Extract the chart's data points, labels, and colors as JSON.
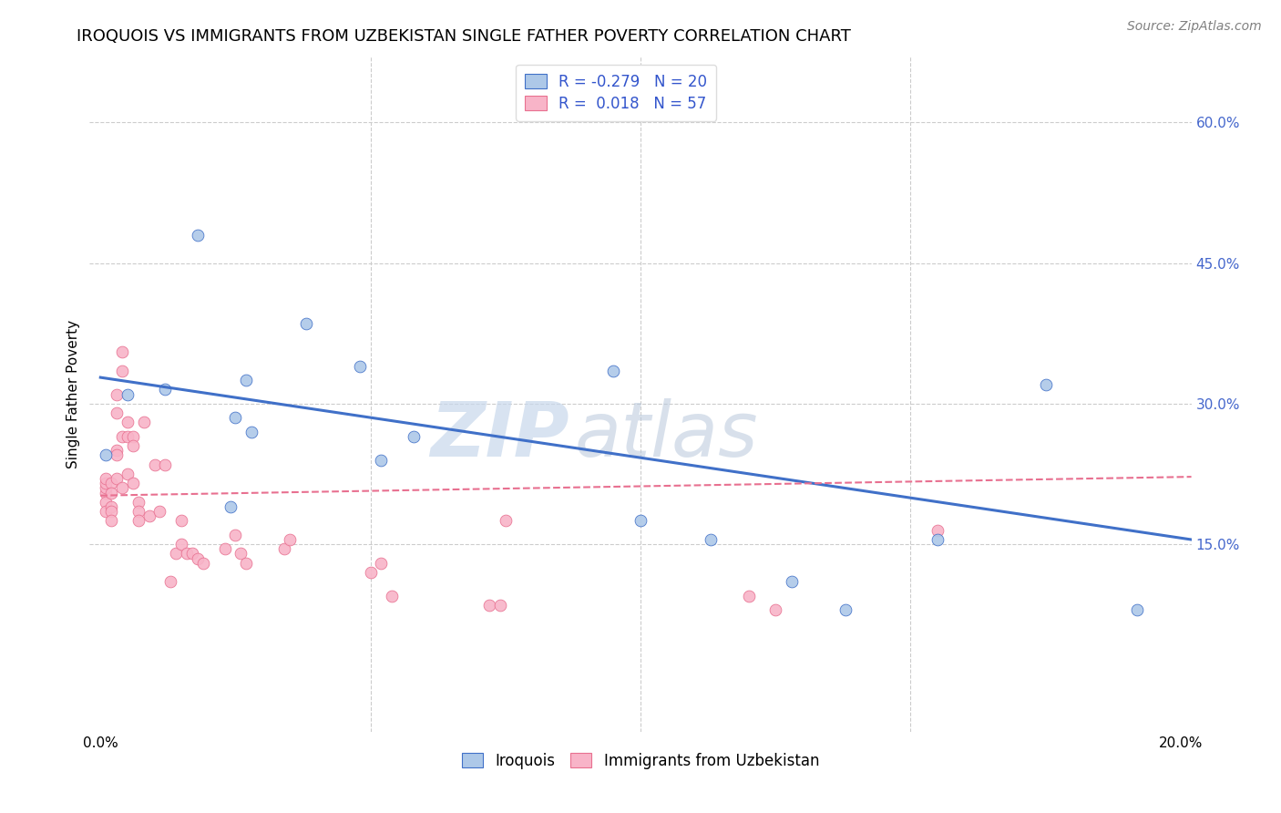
{
  "title": "IROQUOIS VS IMMIGRANTS FROM UZBEKISTAN SINGLE FATHER POVERTY CORRELATION CHART",
  "source": "Source: ZipAtlas.com",
  "ylabel": "Single Father Poverty",
  "xlim": [
    -0.002,
    0.202
  ],
  "ylim": [
    -0.05,
    0.67
  ],
  "watermark_zip": "ZIP",
  "watermark_atlas": "atlas",
  "series1_label": "Iroquois",
  "series2_label": "Immigrants from Uzbekistan",
  "color1": "#adc8e8",
  "color2": "#f8b4c8",
  "trendline1_color": "#4070c8",
  "trendline2_color": "#e87090",
  "background": "#ffffff",
  "grid_color": "#cccccc",
  "iroquois_x": [
    0.001,
    0.005,
    0.012,
    0.018,
    0.024,
    0.025,
    0.027,
    0.028,
    0.038,
    0.048,
    0.052,
    0.058,
    0.095,
    0.1,
    0.113,
    0.128,
    0.138,
    0.155,
    0.175,
    0.192
  ],
  "iroquois_y": [
    0.245,
    0.31,
    0.315,
    0.48,
    0.19,
    0.285,
    0.325,
    0.27,
    0.385,
    0.34,
    0.24,
    0.265,
    0.335,
    0.175,
    0.155,
    0.11,
    0.08,
    0.155,
    0.32,
    0.08
  ],
  "uzbek_x": [
    0.001,
    0.001,
    0.001,
    0.001,
    0.001,
    0.001,
    0.002,
    0.002,
    0.002,
    0.002,
    0.002,
    0.003,
    0.003,
    0.003,
    0.003,
    0.003,
    0.004,
    0.004,
    0.004,
    0.004,
    0.005,
    0.005,
    0.005,
    0.006,
    0.006,
    0.006,
    0.007,
    0.007,
    0.007,
    0.008,
    0.009,
    0.01,
    0.011,
    0.012,
    0.013,
    0.014,
    0.015,
    0.015,
    0.016,
    0.017,
    0.018,
    0.019,
    0.023,
    0.025,
    0.026,
    0.027,
    0.034,
    0.035,
    0.05,
    0.052,
    0.054,
    0.072,
    0.074,
    0.075,
    0.12,
    0.125,
    0.155
  ],
  "uzbek_y": [
    0.205,
    0.21,
    0.215,
    0.22,
    0.195,
    0.185,
    0.215,
    0.205,
    0.19,
    0.185,
    0.175,
    0.25,
    0.29,
    0.31,
    0.245,
    0.22,
    0.335,
    0.355,
    0.265,
    0.21,
    0.28,
    0.265,
    0.225,
    0.265,
    0.255,
    0.215,
    0.195,
    0.185,
    0.175,
    0.28,
    0.18,
    0.235,
    0.185,
    0.235,
    0.11,
    0.14,
    0.15,
    0.175,
    0.14,
    0.14,
    0.135,
    0.13,
    0.145,
    0.16,
    0.14,
    0.13,
    0.145,
    0.155,
    0.12,
    0.13,
    0.095,
    0.085,
    0.085,
    0.175,
    0.095,
    0.08,
    0.165
  ],
  "trendline1_x": [
    0.0,
    0.202
  ],
  "trendline1_y": [
    0.328,
    0.155
  ],
  "trendline2_x": [
    0.0,
    0.202
  ],
  "trendline2_y": [
    0.202,
    0.222
  ],
  "title_fontsize": 13,
  "axis_label_fontsize": 11,
  "tick_fontsize": 11,
  "legend_fontsize": 12,
  "source_fontsize": 10
}
